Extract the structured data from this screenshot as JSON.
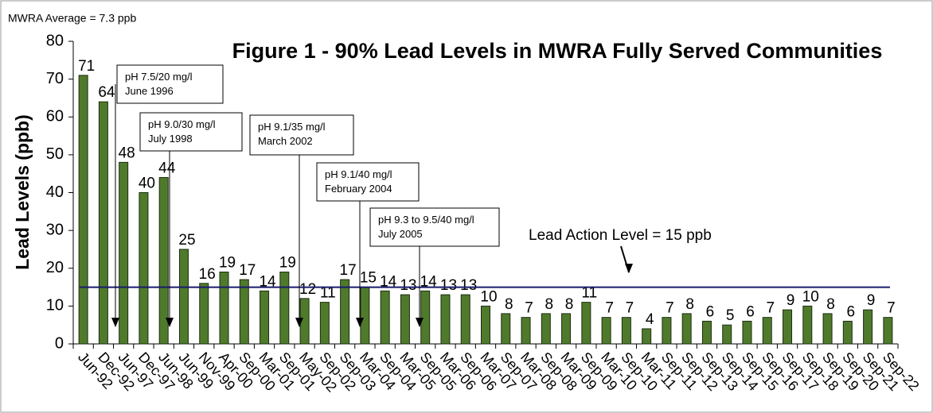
{
  "chart_data": {
    "type": "bar",
    "title": "Figure 1 - 90%  Lead Levels in MWRA Fully Served Communities",
    "subtitle": "MWRA Average = 7.3 ppb",
    "ylabel": "Lead Levels (ppb)",
    "categories": [
      "Jun-92",
      "Dec-92",
      "Jun-97",
      "Dec-97",
      "Jun-98",
      "Jun-99",
      "Nov-99",
      "Apr-00",
      "Sep-00",
      "Mar-01",
      "Sep-01",
      "May-02",
      "Sep-02",
      "Sep-03",
      "Mar-04",
      "Sep-04",
      "Mar-05",
      "Sep-05",
      "Mar-06",
      "Sep-06",
      "Mar-07",
      "Sep-07",
      "Mar-08",
      "Sep-08",
      "Mar-09",
      "Sep-09",
      "Mar-10",
      "Sep-10",
      "Mar-11",
      "Sep-11",
      "Sep-12",
      "Sep-13",
      "Sep-14",
      "Sep-15",
      "Sep-16",
      "Sep-17",
      "Sep-18",
      "Sep-19",
      "Sep-20",
      "Sep-21",
      "Sep-22"
    ],
    "values": [
      71,
      64,
      48,
      40,
      44,
      25,
      16,
      19,
      17,
      14,
      19,
      12,
      11,
      17,
      15,
      14,
      13,
      14,
      13,
      13,
      10,
      8,
      7,
      8,
      8,
      11,
      7,
      7,
      4,
      7,
      8,
      6,
      5,
      6,
      7,
      9,
      10,
      8,
      6,
      9,
      7
    ],
    "color": "#4f7a2c",
    "ylim": [
      0,
      80
    ],
    "yticks": [
      0,
      10,
      20,
      30,
      40,
      50,
      60,
      70,
      80
    ],
    "reference_line": {
      "value": 15,
      "label": "Lead Action Level = 15 ppb",
      "color": "#1a1a6e"
    },
    "annotations": [
      {
        "lines": [
          "pH 7.5/20 mg/l",
          "June 1996"
        ]
      },
      {
        "lines": [
          "pH 9.0/30 mg/l",
          "July 1998"
        ]
      },
      {
        "lines": [
          "pH 9.1/35 mg/l",
          "March 2002"
        ]
      },
      {
        "lines": [
          "pH 9.1/40 mg/l",
          "February 2004"
        ]
      },
      {
        "lines": [
          "pH 9.3  to 9.5/40 mg/l",
          "July 2005"
        ]
      }
    ]
  }
}
